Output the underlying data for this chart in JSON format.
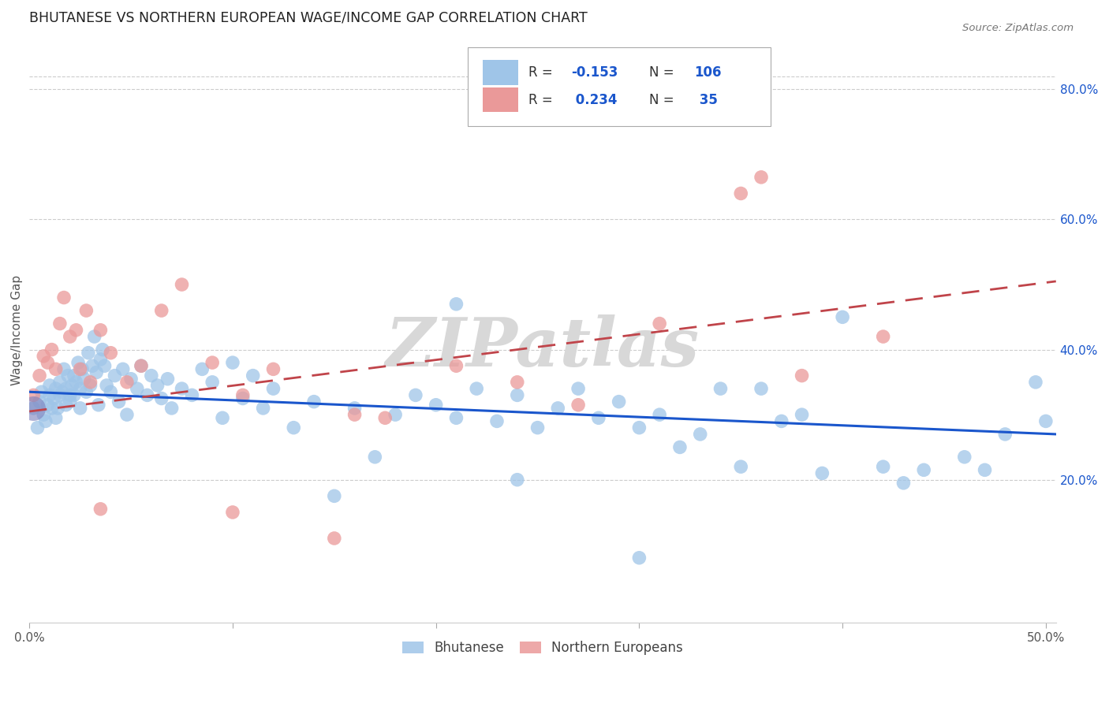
{
  "title": "BHUTANESE VS NORTHERN EUROPEAN WAGE/INCOME GAP CORRELATION CHART",
  "source": "Source: ZipAtlas.com",
  "ylabel": "Wage/Income Gap",
  "xlim": [
    0.0,
    0.505
  ],
  "ylim": [
    -0.02,
    0.88
  ],
  "blue_color": "#9fc5e8",
  "pink_color": "#ea9999",
  "blue_line_color": "#1a56cc",
  "pink_line_color": "#c0444a",
  "R_blue": -0.153,
  "N_blue": 106,
  "R_pink": 0.234,
  "N_pink": 35,
  "watermark": "ZIPatlas",
  "background_color": "#ffffff",
  "yticks_right": [
    0.2,
    0.4,
    0.6,
    0.8
  ],
  "ytick_right_labels": [
    "20.0%",
    "40.0%",
    "60.0%",
    "80.0%"
  ],
  "blue_x": [
    0.002,
    0.004,
    0.005,
    0.006,
    0.007,
    0.008,
    0.009,
    0.01,
    0.01,
    0.011,
    0.012,
    0.013,
    0.013,
    0.014,
    0.015,
    0.015,
    0.016,
    0.017,
    0.018,
    0.018,
    0.019,
    0.02,
    0.02,
    0.021,
    0.022,
    0.022,
    0.023,
    0.024,
    0.025,
    0.025,
    0.026,
    0.027,
    0.028,
    0.029,
    0.03,
    0.031,
    0.032,
    0.033,
    0.034,
    0.035,
    0.036,
    0.037,
    0.038,
    0.04,
    0.042,
    0.044,
    0.046,
    0.048,
    0.05,
    0.053,
    0.055,
    0.058,
    0.06,
    0.063,
    0.065,
    0.068,
    0.07,
    0.075,
    0.08,
    0.085,
    0.09,
    0.095,
    0.1,
    0.105,
    0.11,
    0.115,
    0.12,
    0.13,
    0.14,
    0.15,
    0.16,
    0.17,
    0.18,
    0.19,
    0.2,
    0.21,
    0.22,
    0.23,
    0.24,
    0.25,
    0.26,
    0.27,
    0.28,
    0.29,
    0.3,
    0.31,
    0.32,
    0.33,
    0.34,
    0.35,
    0.36,
    0.37,
    0.38,
    0.39,
    0.4,
    0.42,
    0.44,
    0.46,
    0.48,
    0.495,
    0.3,
    0.24,
    0.21,
    0.43,
    0.47,
    0.5
  ],
  "blue_y": [
    0.31,
    0.28,
    0.32,
    0.335,
    0.3,
    0.29,
    0.315,
    0.33,
    0.345,
    0.31,
    0.325,
    0.34,
    0.295,
    0.31,
    0.33,
    0.35,
    0.335,
    0.37,
    0.315,
    0.34,
    0.36,
    0.33,
    0.32,
    0.345,
    0.33,
    0.36,
    0.35,
    0.38,
    0.31,
    0.34,
    0.37,
    0.355,
    0.335,
    0.395,
    0.345,
    0.375,
    0.42,
    0.365,
    0.315,
    0.385,
    0.4,
    0.375,
    0.345,
    0.335,
    0.36,
    0.32,
    0.37,
    0.3,
    0.355,
    0.34,
    0.375,
    0.33,
    0.36,
    0.345,
    0.325,
    0.355,
    0.31,
    0.34,
    0.33,
    0.37,
    0.35,
    0.295,
    0.38,
    0.325,
    0.36,
    0.31,
    0.34,
    0.28,
    0.32,
    0.175,
    0.31,
    0.235,
    0.3,
    0.33,
    0.315,
    0.295,
    0.34,
    0.29,
    0.33,
    0.28,
    0.31,
    0.34,
    0.295,
    0.32,
    0.28,
    0.3,
    0.25,
    0.27,
    0.34,
    0.22,
    0.34,
    0.29,
    0.3,
    0.21,
    0.45,
    0.22,
    0.215,
    0.235,
    0.27,
    0.35,
    0.08,
    0.2,
    0.47,
    0.195,
    0.215,
    0.29
  ],
  "pink_x": [
    0.002,
    0.005,
    0.007,
    0.009,
    0.011,
    0.013,
    0.015,
    0.017,
    0.02,
    0.023,
    0.025,
    0.028,
    0.03,
    0.035,
    0.04,
    0.048,
    0.055,
    0.065,
    0.075,
    0.09,
    0.105,
    0.12,
    0.15,
    0.175,
    0.21,
    0.24,
    0.27,
    0.31,
    0.35,
    0.36,
    0.38,
    0.42,
    0.035,
    0.1,
    0.16
  ],
  "pink_y": [
    0.33,
    0.36,
    0.39,
    0.38,
    0.4,
    0.37,
    0.44,
    0.48,
    0.42,
    0.43,
    0.37,
    0.46,
    0.35,
    0.43,
    0.395,
    0.35,
    0.375,
    0.46,
    0.5,
    0.38,
    0.33,
    0.37,
    0.11,
    0.295,
    0.375,
    0.35,
    0.315,
    0.44,
    0.64,
    0.665,
    0.36,
    0.42,
    0.155,
    0.15,
    0.3
  ]
}
